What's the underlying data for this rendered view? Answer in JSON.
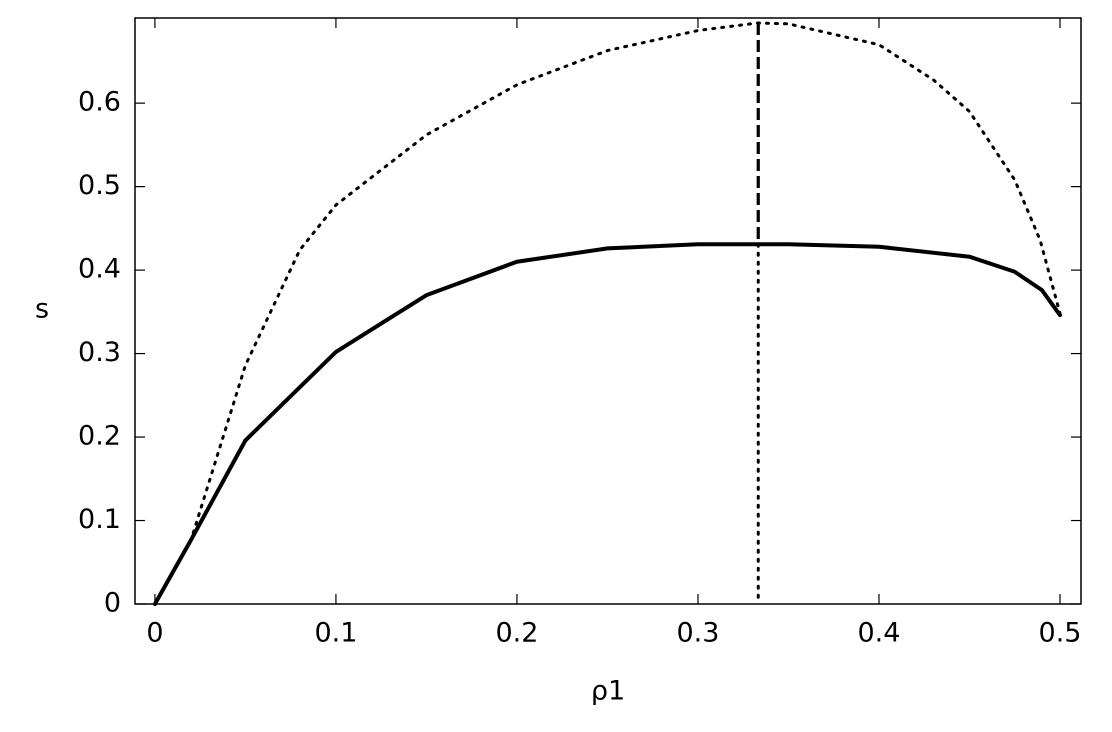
{
  "chart_data": {
    "type": "line",
    "x_label": "ρ1",
    "y_label": "s",
    "xlim": [
      -0.011,
      0.5116
    ],
    "ylim": [
      0,
      0.702
    ],
    "xticks": [
      0,
      0.1,
      0.2,
      0.3,
      0.4,
      0.5
    ],
    "yticks": [
      0,
      0.1,
      0.2,
      0.3,
      0.4,
      0.5,
      0.6
    ],
    "series": [
      {
        "style": "dotted",
        "color": "#000000",
        "x": [
          0,
          0.02,
          0.05,
          0.08,
          0.1,
          0.15,
          0.2,
          0.25,
          0.3,
          0.333,
          0.35,
          0.4,
          0.43,
          0.45,
          0.475,
          0.489,
          0.5
        ],
        "values": [
          0,
          0.077,
          0.286,
          0.424,
          0.478,
          0.562,
          0.622,
          0.663,
          0.687,
          0.696,
          0.695,
          0.67,
          0.628,
          0.59,
          0.508,
          0.436,
          0.348
        ]
      },
      {
        "style": "solid",
        "color": "#000000",
        "x": [
          0,
          0.02,
          0.05,
          0.1,
          0.15,
          0.2,
          0.25,
          0.3,
          0.35,
          0.4,
          0.45,
          0.475,
          0.49,
          0.5
        ],
        "values": [
          0,
          0.077,
          0.196,
          0.302,
          0.37,
          0.41,
          0.426,
          0.431,
          0.431,
          0.428,
          0.416,
          0.398,
          0.376,
          0.346
        ]
      },
      {
        "style": "dashed",
        "color": "#000000",
        "x": [
          0.3333,
          0.3333
        ],
        "values": [
          0.696,
          0.431
        ]
      },
      {
        "style": "dotted",
        "color": "#000000",
        "x": [
          0.3333,
          0.3333
        ],
        "values": [
          0.431,
          0
        ]
      }
    ]
  }
}
